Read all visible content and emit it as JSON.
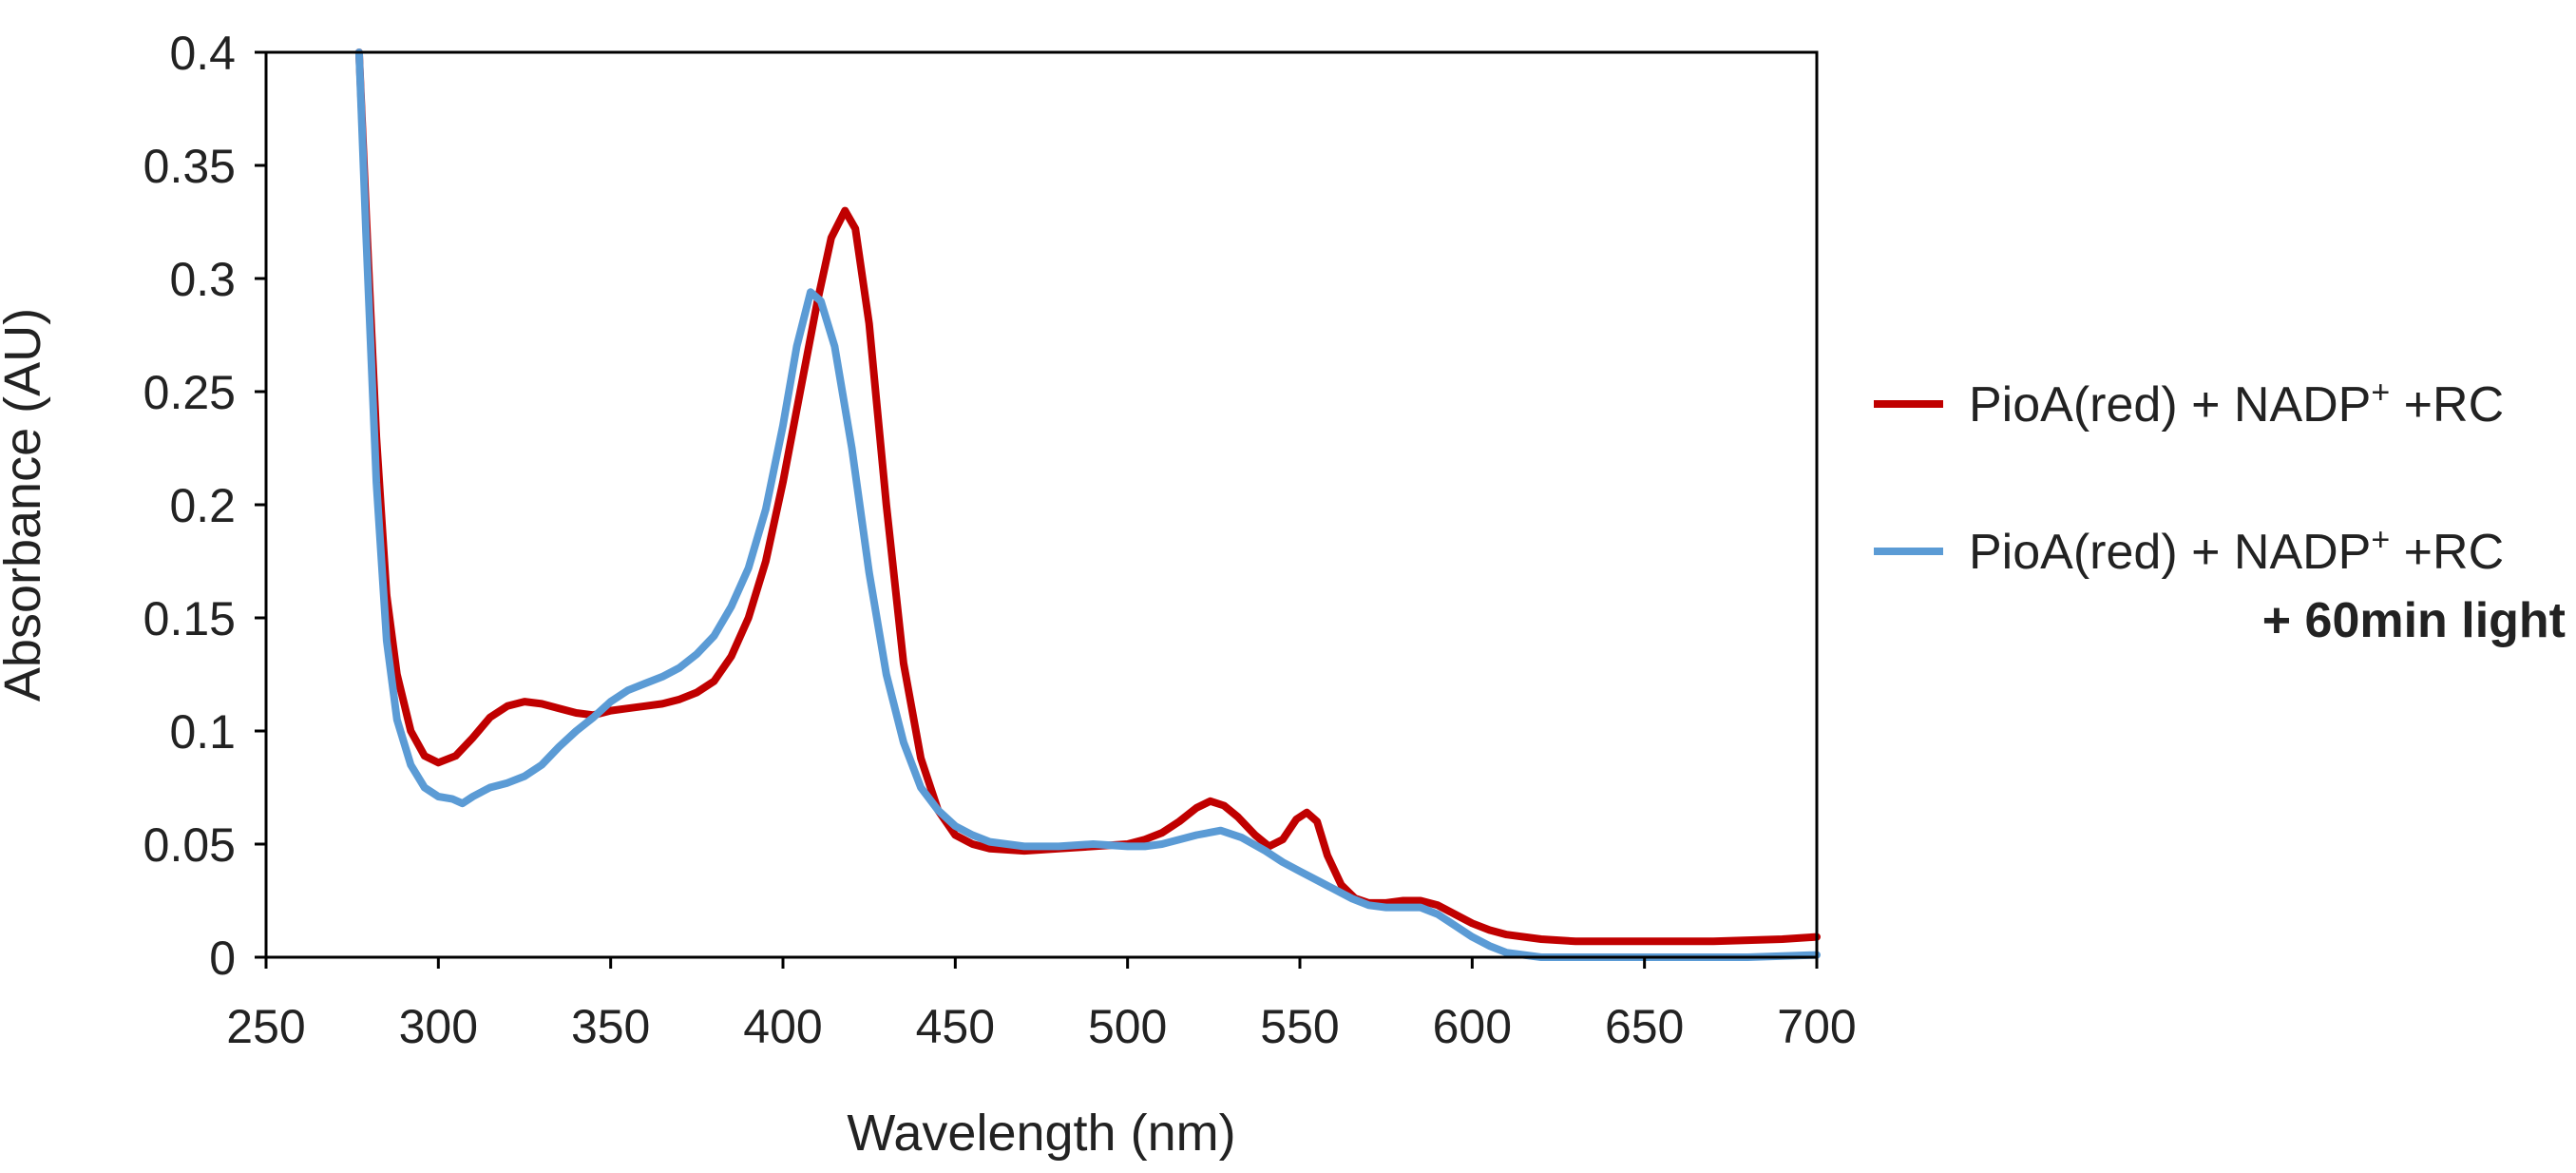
{
  "chart_data": {
    "type": "line",
    "title": "",
    "xlabel": "Wavelength (nm)",
    "ylabel": "Absorbance (AU)",
    "xlim": [
      250,
      700
    ],
    "ylim": [
      0,
      0.4
    ],
    "x_ticks": [
      "250",
      "300",
      "350",
      "400",
      "450",
      "500",
      "550",
      "600",
      "650",
      "700"
    ],
    "y_ticks": [
      "0",
      "0.05",
      "0.1",
      "0.15",
      "0.2",
      "0.25",
      "0.3",
      "0.35",
      "0.4"
    ],
    "grid": false,
    "legend_position": "right",
    "series": [
      {
        "name": "PioA(red) + NADP+ +RC",
        "label_main": "PioA(red) + NADP",
        "label_sup": "+",
        "label_tail": " +RC",
        "color": "#c00000",
        "points": [
          [
            277,
            0.4
          ],
          [
            279,
            0.33
          ],
          [
            282,
            0.23
          ],
          [
            285,
            0.16
          ],
          [
            288,
            0.125
          ],
          [
            292,
            0.1
          ],
          [
            296,
            0.089
          ],
          [
            300,
            0.086
          ],
          [
            305,
            0.089
          ],
          [
            310,
            0.097
          ],
          [
            315,
            0.106
          ],
          [
            320,
            0.111
          ],
          [
            325,
            0.113
          ],
          [
            330,
            0.112
          ],
          [
            335,
            0.11
          ],
          [
            340,
            0.108
          ],
          [
            345,
            0.107
          ],
          [
            350,
            0.109
          ],
          [
            355,
            0.11
          ],
          [
            360,
            0.111
          ],
          [
            365,
            0.112
          ],
          [
            370,
            0.114
          ],
          [
            375,
            0.117
          ],
          [
            380,
            0.122
          ],
          [
            385,
            0.133
          ],
          [
            390,
            0.15
          ],
          [
            395,
            0.175
          ],
          [
            400,
            0.21
          ],
          [
            405,
            0.25
          ],
          [
            410,
            0.29
          ],
          [
            414,
            0.318
          ],
          [
            418,
            0.33
          ],
          [
            421,
            0.322
          ],
          [
            425,
            0.28
          ],
          [
            430,
            0.2
          ],
          [
            435,
            0.13
          ],
          [
            440,
            0.088
          ],
          [
            445,
            0.065
          ],
          [
            450,
            0.054
          ],
          [
            455,
            0.05
          ],
          [
            460,
            0.048
          ],
          [
            470,
            0.047
          ],
          [
            480,
            0.048
          ],
          [
            490,
            0.049
          ],
          [
            500,
            0.05
          ],
          [
            505,
            0.052
          ],
          [
            510,
            0.055
          ],
          [
            515,
            0.06
          ],
          [
            520,
            0.066
          ],
          [
            524,
            0.069
          ],
          [
            528,
            0.067
          ],
          [
            532,
            0.062
          ],
          [
            537,
            0.054
          ],
          [
            541,
            0.049
          ],
          [
            545,
            0.052
          ],
          [
            549,
            0.061
          ],
          [
            552,
            0.064
          ],
          [
            555,
            0.06
          ],
          [
            558,
            0.045
          ],
          [
            562,
            0.032
          ],
          [
            566,
            0.026
          ],
          [
            570,
            0.024
          ],
          [
            575,
            0.024
          ],
          [
            580,
            0.025
          ],
          [
            585,
            0.025
          ],
          [
            590,
            0.023
          ],
          [
            595,
            0.019
          ],
          [
            600,
            0.015
          ],
          [
            605,
            0.012
          ],
          [
            610,
            0.01
          ],
          [
            620,
            0.008
          ],
          [
            630,
            0.007
          ],
          [
            650,
            0.007
          ],
          [
            670,
            0.007
          ],
          [
            690,
            0.008
          ],
          [
            700,
            0.009
          ]
        ]
      },
      {
        "name": "PioA(red) + NADP+ +RC + 60min light",
        "label_main": "PioA(red) + NADP",
        "label_sup": "+",
        "label_tail": " +RC",
        "label_line2": "+ 60min light",
        "color": "#5b9bd5",
        "points": [
          [
            277,
            0.4
          ],
          [
            279,
            0.32
          ],
          [
            282,
            0.21
          ],
          [
            285,
            0.14
          ],
          [
            288,
            0.105
          ],
          [
            292,
            0.085
          ],
          [
            296,
            0.075
          ],
          [
            300,
            0.071
          ],
          [
            304,
            0.07
          ],
          [
            307,
            0.068
          ],
          [
            310,
            0.071
          ],
          [
            315,
            0.075
          ],
          [
            320,
            0.077
          ],
          [
            325,
            0.08
          ],
          [
            330,
            0.085
          ],
          [
            335,
            0.093
          ],
          [
            340,
            0.1
          ],
          [
            345,
            0.106
          ],
          [
            350,
            0.113
          ],
          [
            355,
            0.118
          ],
          [
            360,
            0.121
          ],
          [
            365,
            0.124
          ],
          [
            370,
            0.128
          ],
          [
            375,
            0.134
          ],
          [
            380,
            0.142
          ],
          [
            385,
            0.155
          ],
          [
            390,
            0.172
          ],
          [
            395,
            0.198
          ],
          [
            400,
            0.235
          ],
          [
            404,
            0.27
          ],
          [
            408,
            0.294
          ],
          [
            411,
            0.29
          ],
          [
            415,
            0.27
          ],
          [
            420,
            0.225
          ],
          [
            425,
            0.17
          ],
          [
            430,
            0.125
          ],
          [
            435,
            0.095
          ],
          [
            440,
            0.075
          ],
          [
            445,
            0.065
          ],
          [
            450,
            0.058
          ],
          [
            455,
            0.054
          ],
          [
            460,
            0.051
          ],
          [
            470,
            0.049
          ],
          [
            480,
            0.049
          ],
          [
            490,
            0.05
          ],
          [
            500,
            0.049
          ],
          [
            505,
            0.049
          ],
          [
            510,
            0.05
          ],
          [
            515,
            0.052
          ],
          [
            520,
            0.054
          ],
          [
            527,
            0.056
          ],
          [
            533,
            0.053
          ],
          [
            540,
            0.047
          ],
          [
            545,
            0.042
          ],
          [
            550,
            0.038
          ],
          [
            555,
            0.034
          ],
          [
            560,
            0.03
          ],
          [
            565,
            0.026
          ],
          [
            570,
            0.023
          ],
          [
            575,
            0.022
          ],
          [
            580,
            0.022
          ],
          [
            585,
            0.022
          ],
          [
            590,
            0.019
          ],
          [
            595,
            0.014
          ],
          [
            600,
            0.009
          ],
          [
            605,
            0.005
          ],
          [
            610,
            0.002
          ],
          [
            615,
            0.001
          ],
          [
            620,
            0.0
          ],
          [
            650,
            0.0
          ],
          [
            680,
            0.0
          ],
          [
            700,
            0.001
          ]
        ]
      }
    ]
  }
}
